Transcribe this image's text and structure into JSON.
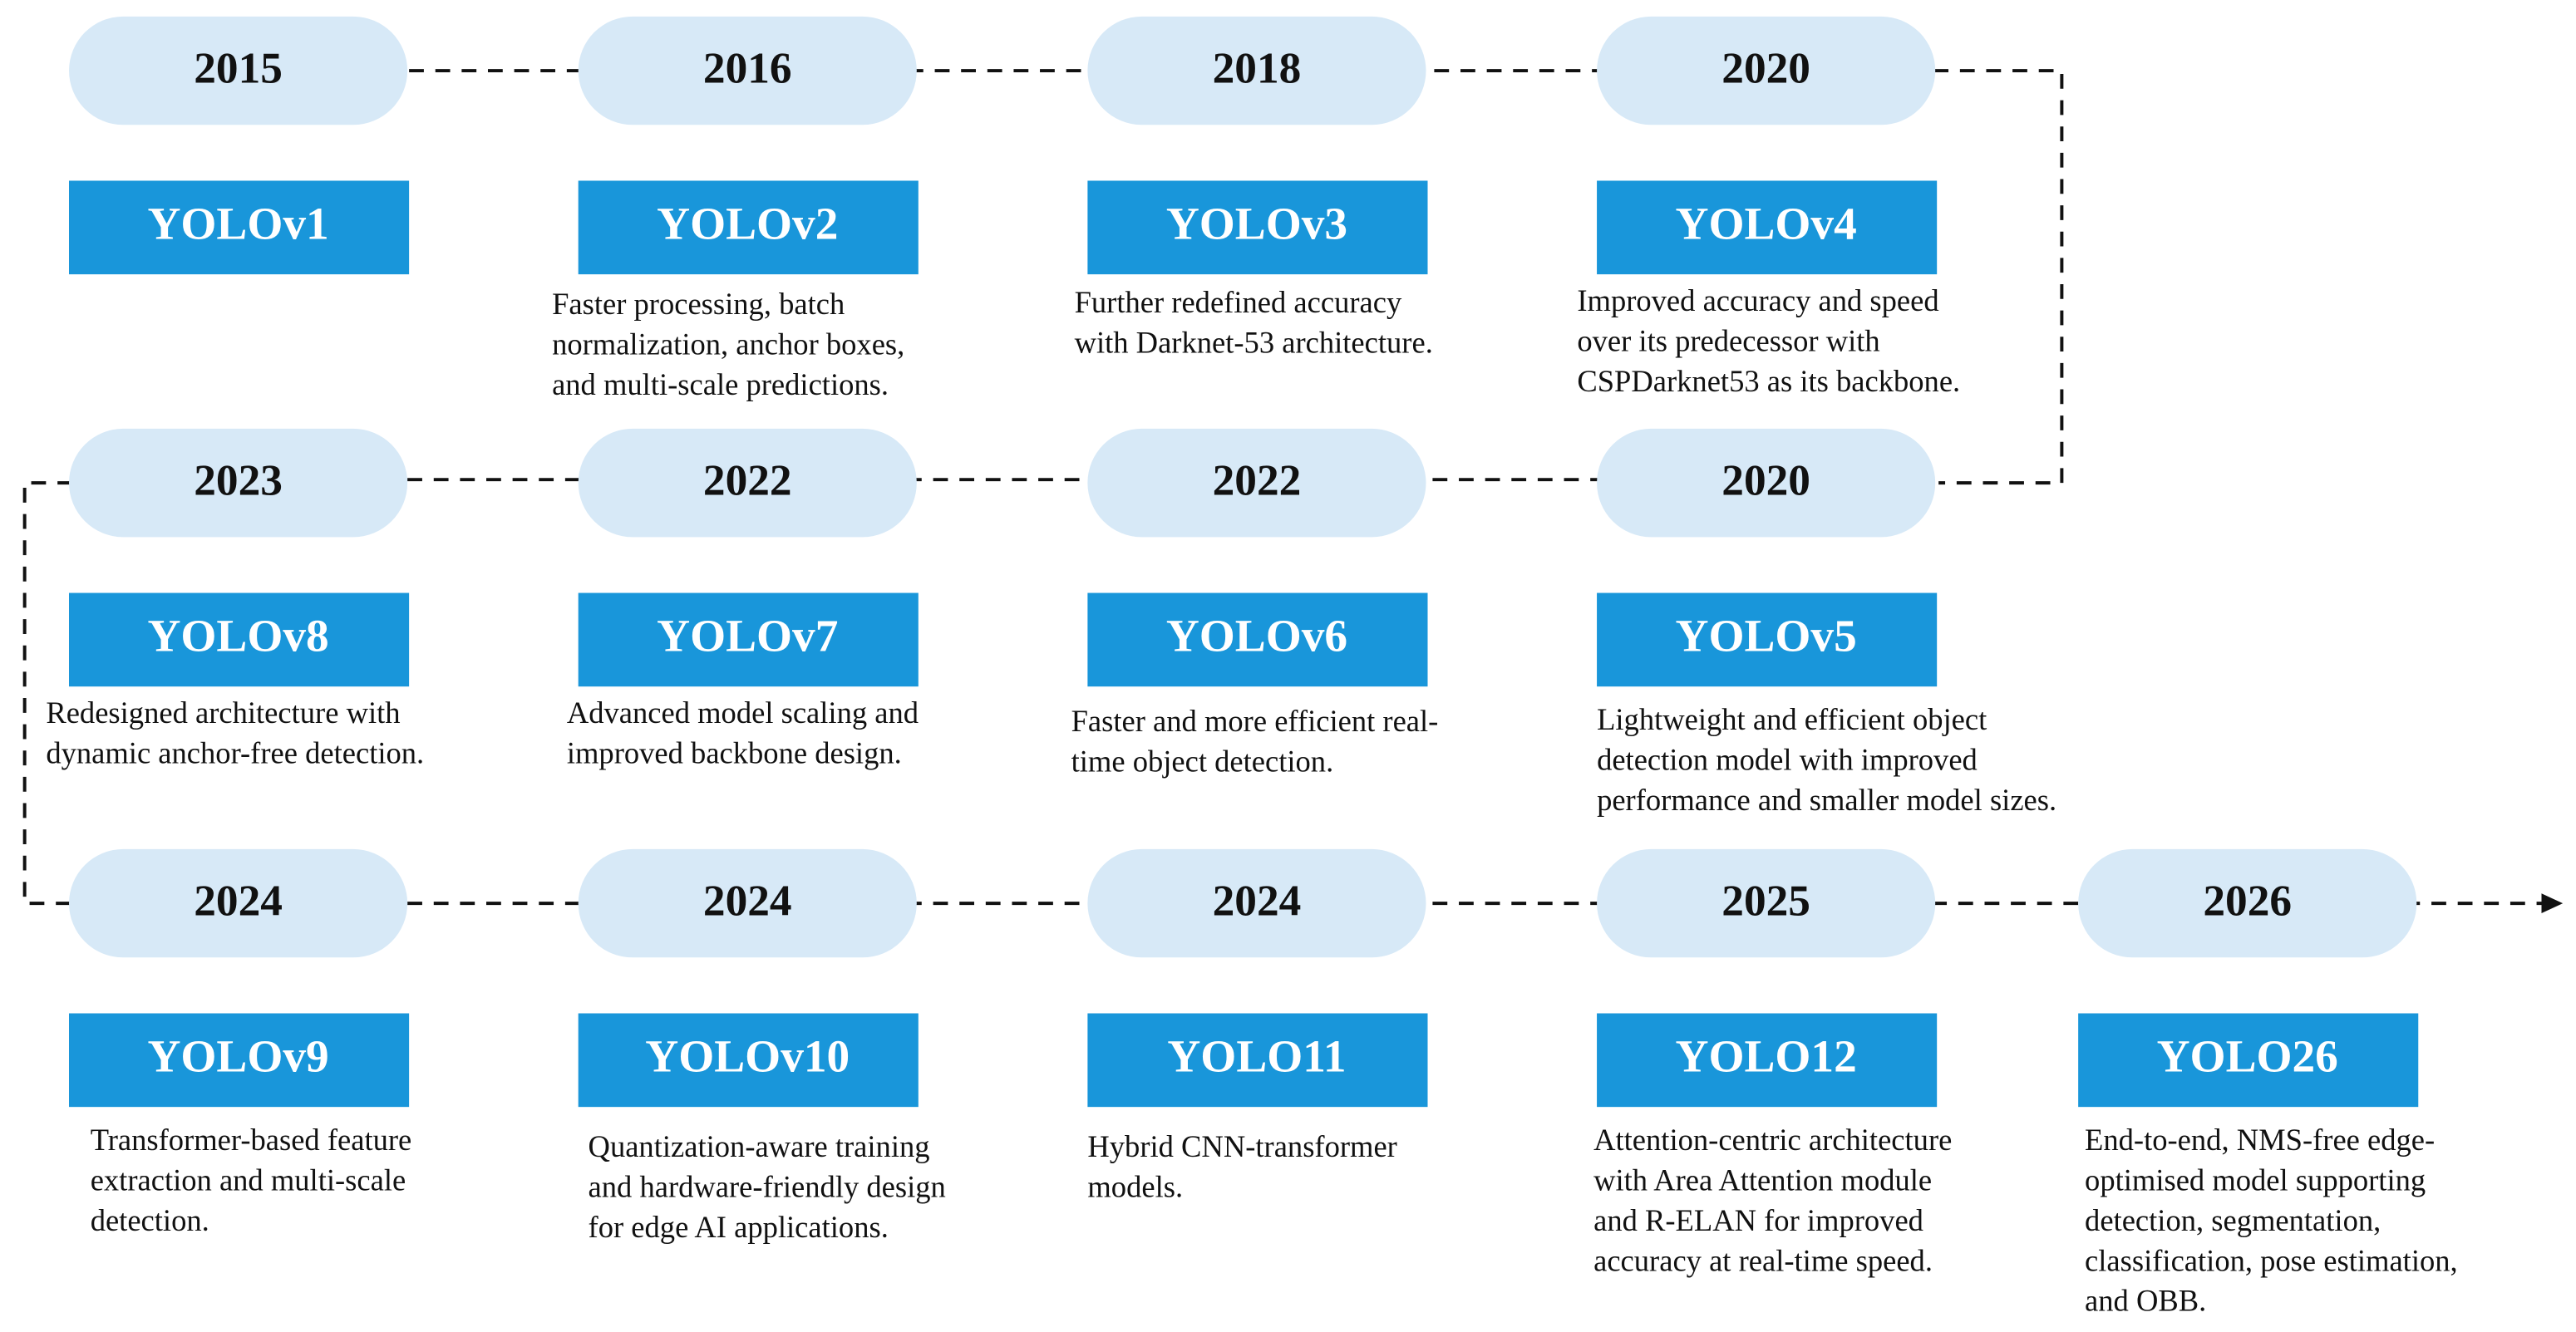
{
  "nodes": [
    {
      "year": "2015",
      "model": "YOLOv1"
    },
    {
      "year": "2016",
      "model": "YOLOv2",
      "description": [
        "Faster processing, batch",
        "normalization, anchor boxes,",
        "and multi-scale predictions."
      ]
    },
    {
      "year": "2018",
      "model": "YOLOv3",
      "description": [
        "Further redefined accuracy",
        "with Darknet-53 architecture."
      ]
    },
    {
      "year": "2020",
      "model": "YOLOv4",
      "description": [
        "Improved accuracy and speed",
        "over its predecessor with",
        "CSPDarknet53 as its backbone."
      ]
    },
    {
      "year": "2020",
      "model": "YOLOv5",
      "description": [
        "Lightweight and efficient object",
        "detection model with improved",
        "performance and smaller model sizes."
      ]
    },
    {
      "year": "2022",
      "model": "YOLOv6",
      "description": [
        "Faster and more efficient real-",
        "time object detection."
      ]
    },
    {
      "year": "2022",
      "model": "YOLOv7",
      "description": [
        "Advanced model scaling and",
        "improved backbone design."
      ]
    },
    {
      "year": "2023",
      "model": "YOLOv8",
      "description": [
        "Redesigned architecture with",
        "dynamic anchor-free detection."
      ]
    },
    {
      "year": "2024",
      "model": "YOLOv9",
      "description": [
        "Transformer-based feature",
        "extraction and multi-scale",
        "detection."
      ]
    },
    {
      "year": "2024",
      "model": "YOLOv10",
      "description": [
        "Quantization-aware training",
        "and hardware-friendly design",
        "for edge AI applications."
      ]
    },
    {
      "year": "2024",
      "model": "YOLO11",
      "description": [
        "Hybrid CNN-transformer",
        "models."
      ]
    },
    {
      "year": "2025",
      "model": "YOLO12",
      "description": [
        "Attention-centric architecture",
        "with Area Attention module",
        "and R-ELAN for improved",
        "accuracy at real-time speed."
      ]
    },
    {
      "year": "2026",
      "model": "YOLO26",
      "description": [
        "End-to-end, NMS-free edge-",
        "optimised model supporting",
        "detection, segmentation,",
        "classification, pose estimation,",
        "and OBB."
      ]
    }
  ]
}
